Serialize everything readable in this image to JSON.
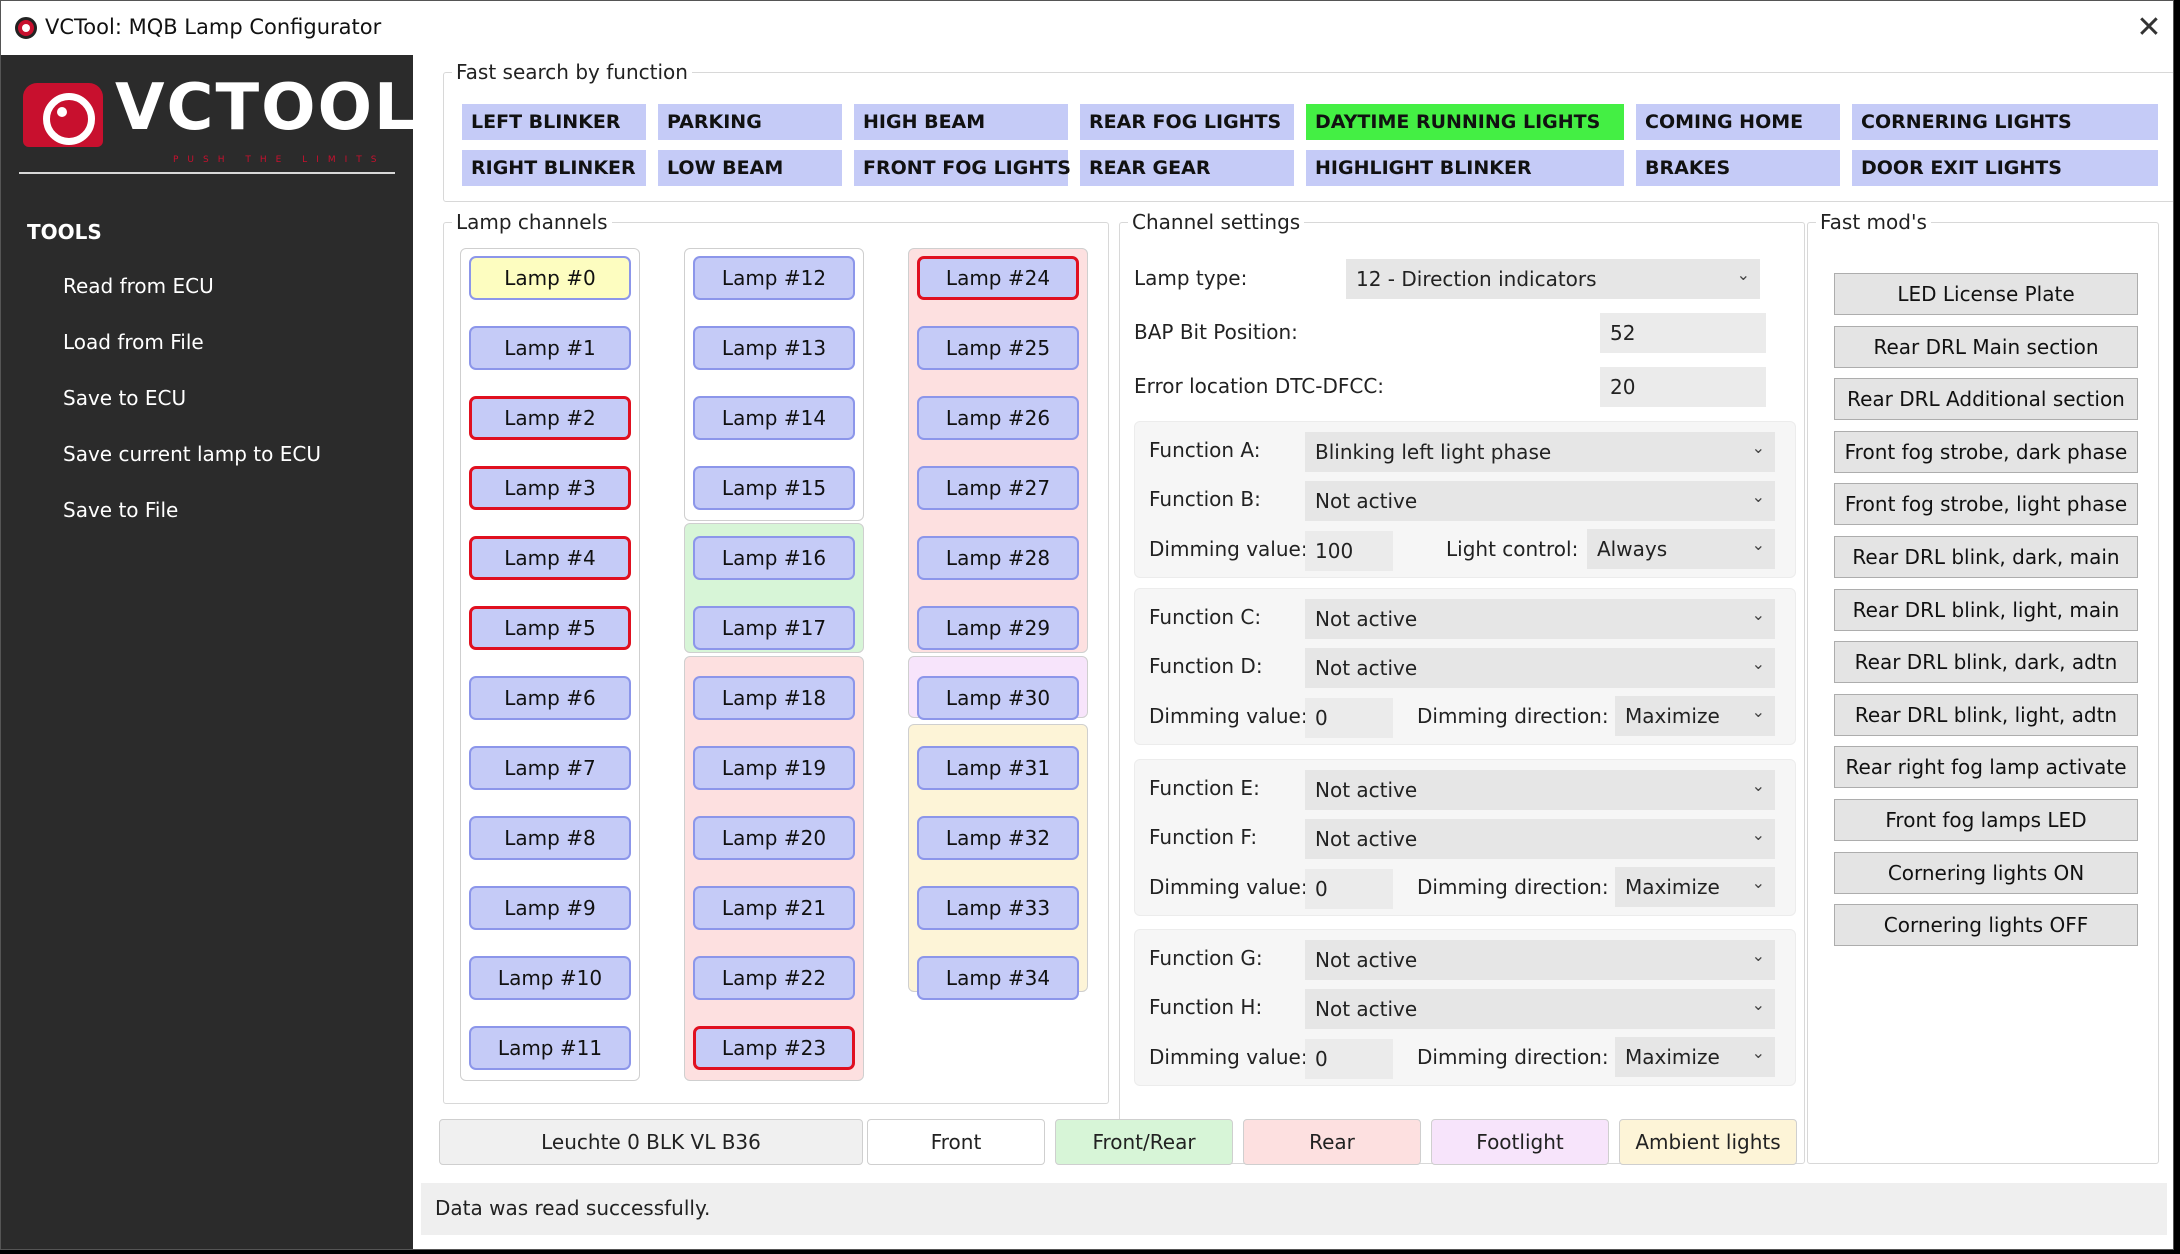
{
  "window": {
    "title": "VCTool: MQB Lamp Configurator",
    "close_symbol": "✕"
  },
  "sidebar": {
    "logo_text": "VCTOOL",
    "logo_slogan": "PUSH THE LIMITS",
    "tools_heading": "TOOLS",
    "items": [
      "Read from ECU",
      "Load from File",
      "Save to ECU",
      "Save current lamp to ECU",
      "Save to File"
    ]
  },
  "fast_search": {
    "legend": "Fast search by function",
    "buttons": [
      "LEFT BLINKER",
      "PARKING",
      "HIGH BEAM",
      "REAR FOG LIGHTS",
      "DAYTIME RUNNING LIGHTS",
      "COMING HOME",
      "CORNERING LIGHTS",
      "RIGHT BLINKER",
      "LOW BEAM",
      "FRONT FOG LIGHTS",
      "REAR GEAR",
      "HIGHLIGHT BLINKER",
      "BRAKES",
      "DOOR EXIT LIGHTS"
    ],
    "active": "DAYTIME RUNNING LIGHTS",
    "active_color": "#44ef44",
    "button_color": "#c5cbf7"
  },
  "lamp_channels": {
    "legend": "Lamp channels",
    "lamps": [
      "Lamp #0",
      "Lamp #1",
      "Lamp #2",
      "Lamp #3",
      "Lamp #4",
      "Lamp #5",
      "Lamp #6",
      "Lamp #7",
      "Lamp #8",
      "Lamp #9",
      "Lamp #10",
      "Lamp #11",
      "Lamp #12",
      "Lamp #13",
      "Lamp #14",
      "Lamp #15",
      "Lamp #16",
      "Lamp #17",
      "Lamp #18",
      "Lamp #19",
      "Lamp #20",
      "Lamp #21",
      "Lamp #22",
      "Lamp #23",
      "Lamp #24",
      "Lamp #25",
      "Lamp #26",
      "Lamp #27",
      "Lamp #28",
      "Lamp #29",
      "Lamp #30",
      "Lamp #31",
      "Lamp #32",
      "Lamp #33",
      "Lamp #34"
    ],
    "selected": "Lamp #0",
    "marked": [
      "Lamp #2",
      "Lamp #3",
      "Lamp #4",
      "Lamp #5",
      "Lamp #23",
      "Lamp #24"
    ],
    "colors": {
      "front": "#ffffff",
      "front_rear": "#d7f5d7",
      "rear": "#fde0e0",
      "footlight": "#f7e4fb",
      "ambient": "#fdf4d7"
    }
  },
  "channel_settings": {
    "legend": "Channel settings",
    "lamp_type_label": "Lamp type:",
    "lamp_type_value": "12 - Direction indicators",
    "bap_label": "BAP Bit Position:",
    "bap_value": "52",
    "error_label": "Error location DTC-DFCC:",
    "error_value": "20",
    "groups": [
      {
        "f1_label": "Function A:",
        "f1_value": "Blinking left light phase",
        "f2_label": "Function B:",
        "f2_value": "Not active",
        "dim_label": "Dimming value:",
        "dim_value": "100",
        "extra_label": "Light control:",
        "extra_value": "Always"
      },
      {
        "f1_label": "Function C:",
        "f1_value": "Not active",
        "f2_label": "Function D:",
        "f2_value": "Not active",
        "dim_label": "Dimming value:",
        "dim_value": "0",
        "extra_label": "Dimming direction:",
        "extra_value": "Maximize"
      },
      {
        "f1_label": "Function E:",
        "f1_value": "Not active",
        "f2_label": "Function F:",
        "f2_value": "Not active",
        "dim_label": "Dimming value:",
        "dim_value": "0",
        "extra_label": "Dimming direction:",
        "extra_value": "Maximize"
      },
      {
        "f1_label": "Function G:",
        "f1_value": "Not active",
        "f2_label": "Function H:",
        "f2_value": "Not active",
        "dim_label": "Dimming value:",
        "dim_value": "0",
        "extra_label": "Dimming direction:",
        "extra_value": "Maximize"
      }
    ]
  },
  "fast_mods": {
    "legend": "Fast mod's",
    "buttons": [
      "LED License Plate",
      "Rear DRL Main section",
      "Rear DRL Additional section",
      "Front fog strobe, dark phase",
      "Front fog strobe, light phase",
      "Rear DRL blink, dark, main",
      "Rear DRL blink, light, main",
      "Rear DRL blink, dark, adtn",
      "Rear DRL blink, light, adtn",
      "Rear right fog lamp activate",
      "Front fog lamps LED",
      "Cornering lights ON",
      "Cornering lights OFF"
    ]
  },
  "bottom_legend": {
    "lamp_name": "Leuchte 0 BLK VL B36",
    "items": [
      "Front",
      "Front/Rear",
      "Rear",
      "Footlight",
      "Ambient lights"
    ]
  },
  "status": "Data was read successfully."
}
